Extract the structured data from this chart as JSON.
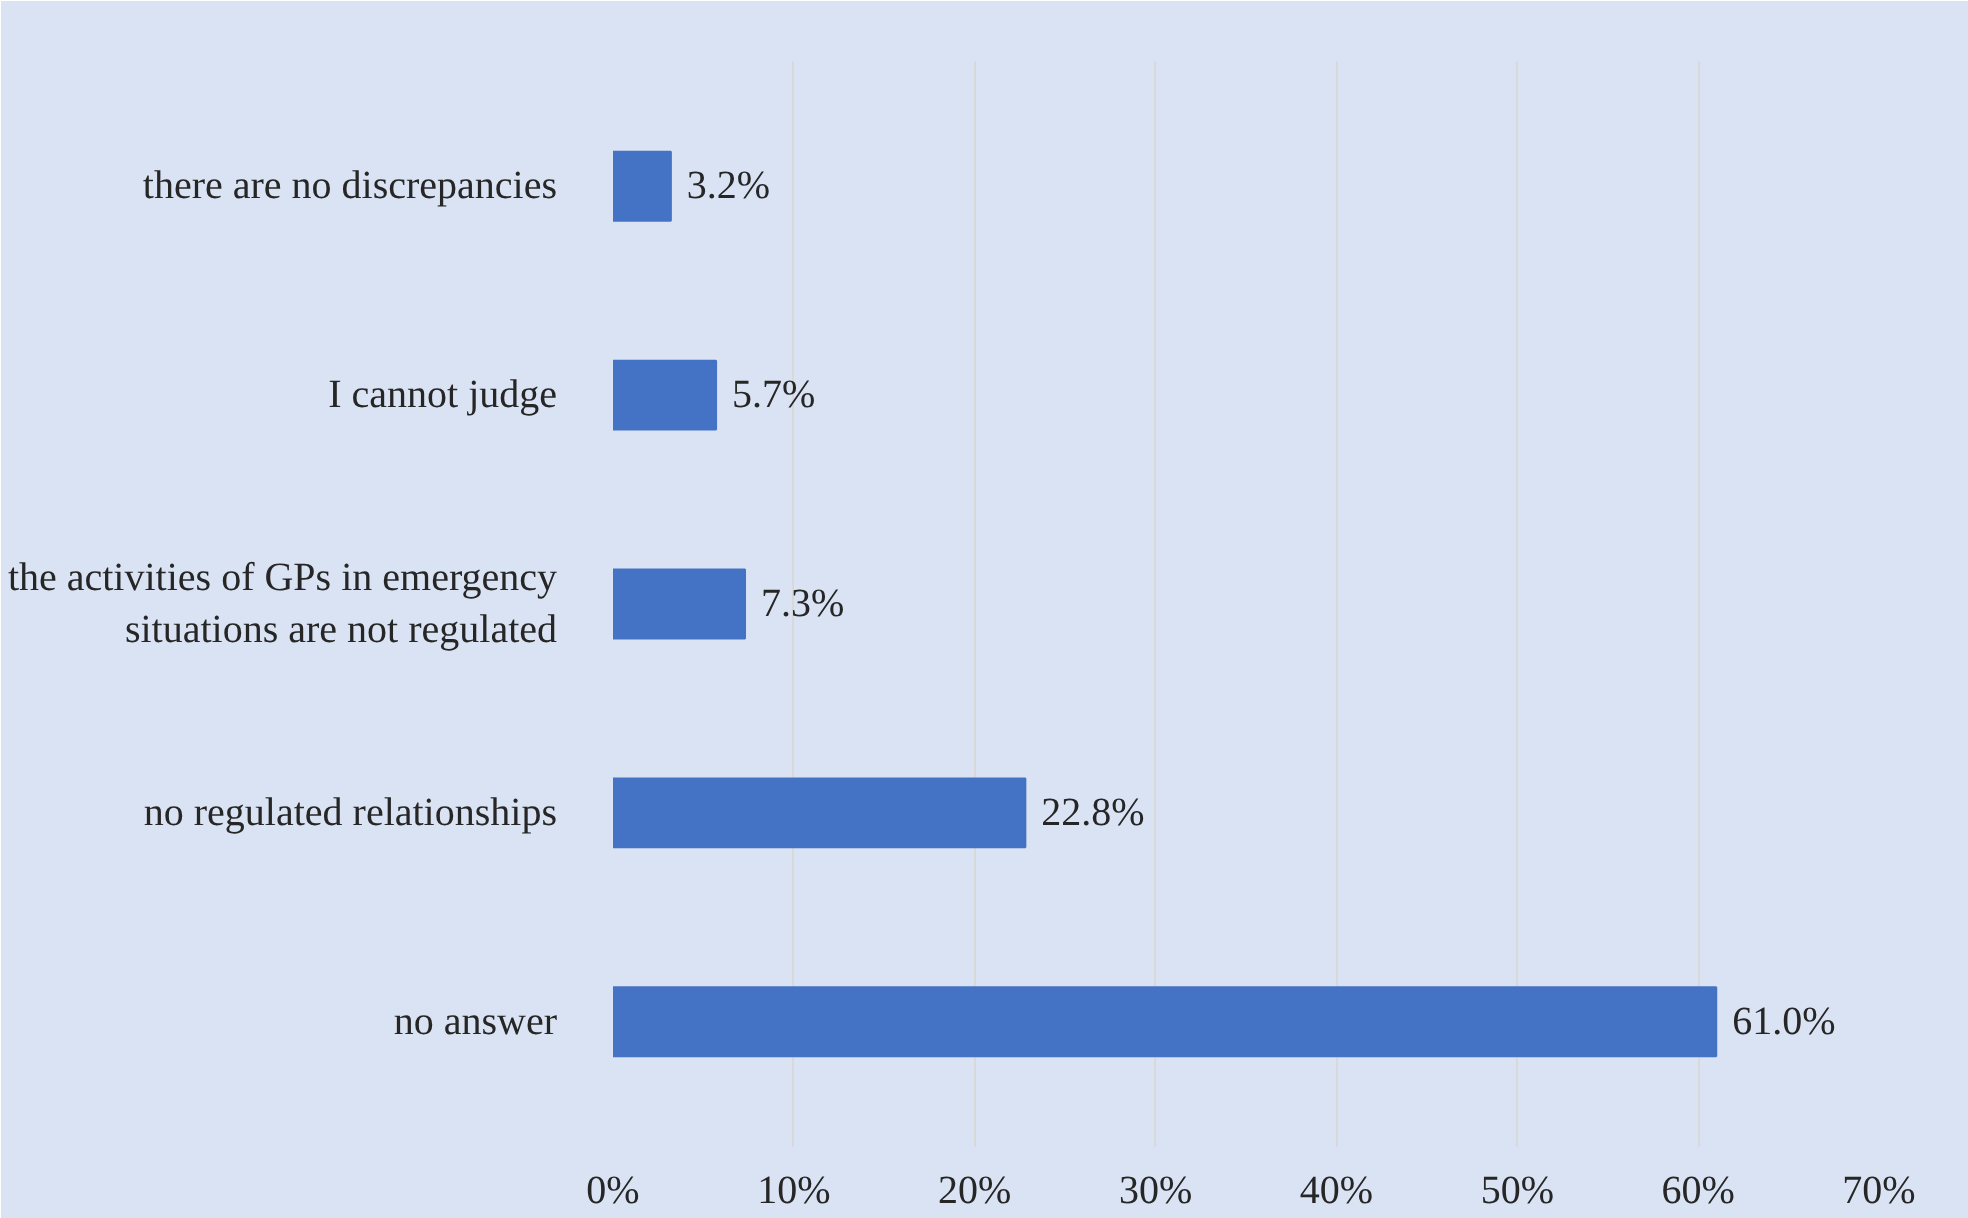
{
  "chart_data": {
    "type": "bar",
    "orientation": "horizontal",
    "categories": [
      "there are no discrepancies",
      "I cannot judge",
      "the activities of GPs in emergency situations are not regulated",
      "no regulated relationships",
      "no answer"
    ],
    "values": [
      3.2,
      5.7,
      7.3,
      22.8,
      61.0
    ],
    "value_labels": [
      "3.2%",
      "5.7%",
      "7.3%",
      "22.8%",
      "61.0%"
    ],
    "color": "#4472c4",
    "xlim": [
      0,
      70
    ],
    "xticks": [
      {
        "value": 0,
        "label": "0%"
      },
      {
        "value": 10,
        "label": "10%"
      },
      {
        "value": 20,
        "label": "20%"
      },
      {
        "value": 30,
        "label": "30%"
      },
      {
        "value": 40,
        "label": "40%"
      },
      {
        "value": 50,
        "label": "50%"
      },
      {
        "value": 60,
        "label": "60%"
      },
      {
        "value": 70,
        "label": "70%"
      }
    ],
    "grid": "x"
  }
}
